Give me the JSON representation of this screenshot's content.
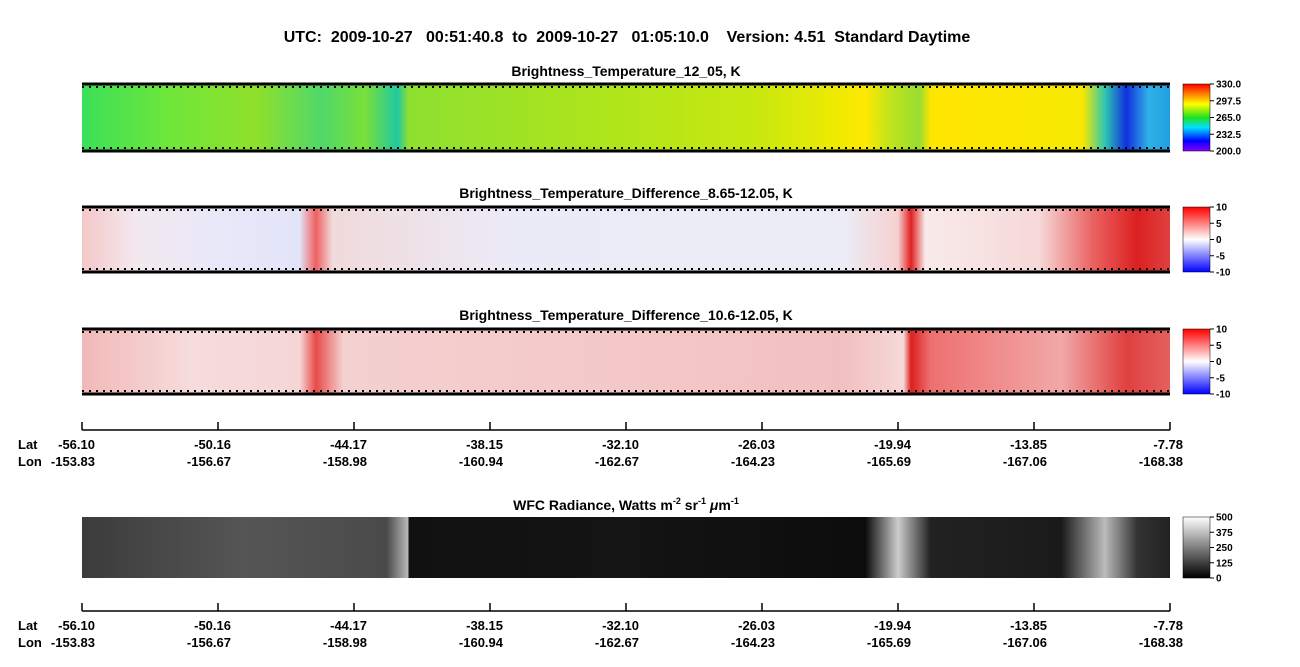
{
  "header": {
    "title": "UTC:  2009-10-27   00:51:40.8  to  2009-10-27   01:05:10.0    Version: 4.51  Standard Daytime"
  },
  "panels": [
    {
      "title": "Brightness_Temperature_12_05, K",
      "colorbar": [
        "330.0",
        "297.5",
        "265.0",
        "232.5",
        "200.0"
      ]
    },
    {
      "title": "Brightness_Temperature_Difference_8.65-12.05, K",
      "colorbar": [
        "10",
        "5",
        "0",
        "-5",
        "-10"
      ]
    },
    {
      "title": "Brightness_Temperature_Difference_10.6-12.05, K",
      "colorbar": [
        "10",
        "5",
        "0",
        "-5",
        "-10"
      ]
    },
    {
      "title": [
        "WFC Radiance, Watts m",
        "-2",
        " sr",
        "-1",
        " ",
        "μ",
        "m",
        "-1"
      ],
      "colorbar": [
        "500",
        "375",
        "250",
        "125",
        "0"
      ]
    }
  ],
  "axes": [
    {
      "lat_label": "Lat",
      "lon_label": "Lon",
      "lat": [
        "-56.10",
        "-50.16",
        "-44.17",
        "-38.15",
        "-32.10",
        "-26.03",
        "-19.94",
        "-13.85",
        "-7.78"
      ],
      "lon": [
        "-153.83",
        "-156.67",
        "-158.98",
        "-160.94",
        "-162.67",
        "-164.23",
        "-165.69",
        "-167.06",
        "-168.38"
      ]
    },
    {
      "lat_label": "Lat",
      "lon_label": "Lon",
      "lat": [
        "-56.10",
        "-50.16",
        "-44.17",
        "-38.15",
        "-32.10",
        "-26.03",
        "-19.94",
        "-13.85",
        "-7.78"
      ],
      "lon": [
        "-153.83",
        "-156.67",
        "-158.98",
        "-160.94",
        "-162.67",
        "-164.23",
        "-165.69",
        "-167.06",
        "-168.38"
      ]
    }
  ]
}
